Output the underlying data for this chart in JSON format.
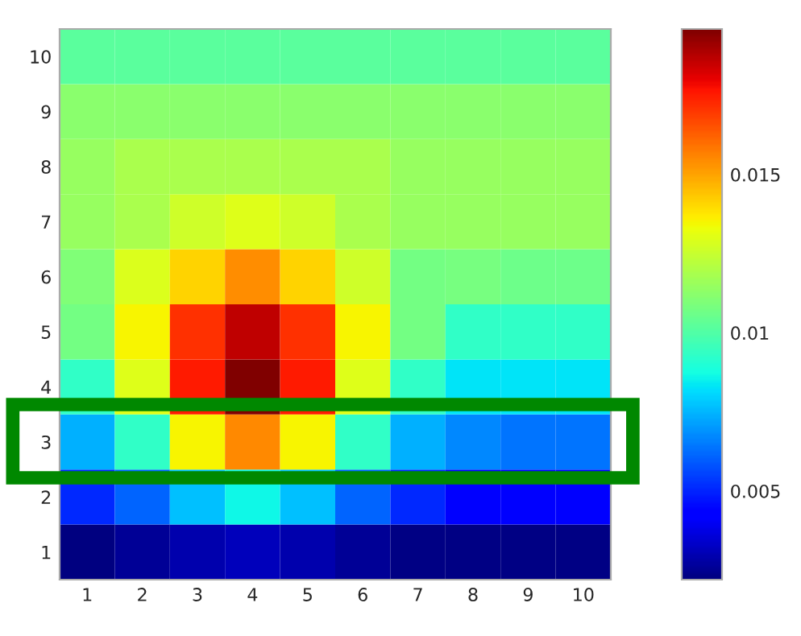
{
  "chart_data": {
    "type": "heatmap",
    "categories": [
      "1",
      "2",
      "3",
      "4",
      "5",
      "6",
      "7",
      "8",
      "9",
      "10"
    ],
    "y_categories": [
      "10",
      "9",
      "8",
      "7",
      "6",
      "5",
      "4",
      "3",
      "2",
      "1"
    ],
    "cells": [
      [
        0.0102,
        0.0102,
        0.0102,
        0.0102,
        0.0102,
        0.0102,
        0.0102,
        0.0102,
        0.0102,
        0.0102
      ],
      [
        0.0112,
        0.0112,
        0.0112,
        0.0112,
        0.0112,
        0.0112,
        0.0112,
        0.0112,
        0.0112,
        0.0112
      ],
      [
        0.0115,
        0.0119,
        0.0119,
        0.0119,
        0.0119,
        0.0119,
        0.0115,
        0.0115,
        0.0115,
        0.0115
      ],
      [
        0.0115,
        0.0119,
        0.0126,
        0.013,
        0.0126,
        0.0119,
        0.0115,
        0.0115,
        0.0115,
        0.0115
      ],
      [
        0.011,
        0.0129,
        0.0141,
        0.0154,
        0.0141,
        0.0126,
        0.0107,
        0.0108,
        0.0106,
        0.0106
      ],
      [
        0.0107,
        0.0135,
        0.0171,
        0.0186,
        0.0171,
        0.0135,
        0.0107,
        0.0093,
        0.0093,
        0.0093
      ],
      [
        0.0093,
        0.013,
        0.0175,
        0.0196,
        0.0175,
        0.013,
        0.0093,
        0.0083,
        0.0083,
        0.0083
      ],
      [
        0.0074,
        0.0093,
        0.0135,
        0.0155,
        0.0135,
        0.0093,
        0.0074,
        0.0067,
        0.0064,
        0.0064
      ],
      [
        0.0051,
        0.0061,
        0.0077,
        0.0086,
        0.0077,
        0.0061,
        0.0051,
        0.0042,
        0.0042,
        0.0042
      ],
      [
        0.0022,
        0.0026,
        0.0029,
        0.0031,
        0.0029,
        0.0026,
        0.0023,
        0.0023,
        0.0023,
        0.0023
      ]
    ],
    "clim": [
      0.0022,
      0.0196
    ],
    "cticks": [
      0.005,
      0.01,
      0.015
    ]
  }
}
